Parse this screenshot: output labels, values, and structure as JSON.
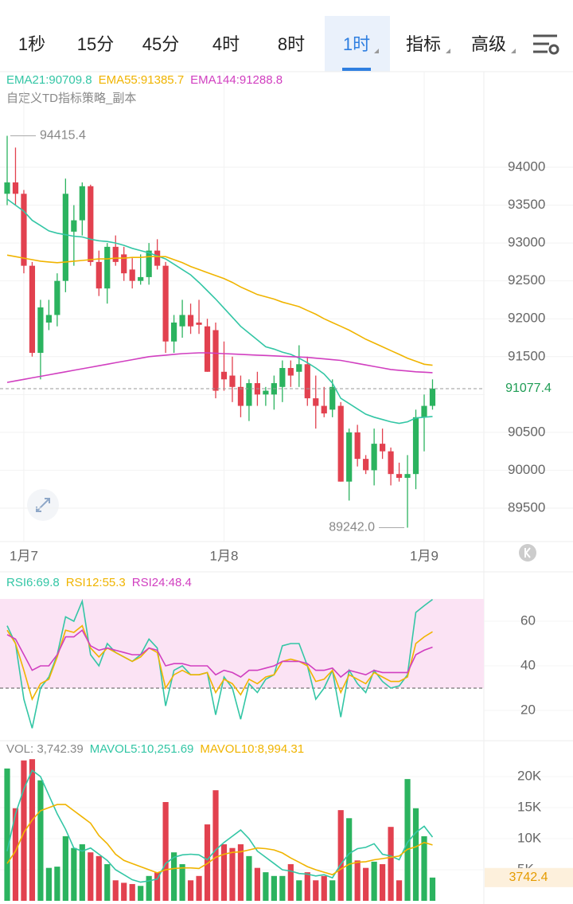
{
  "tabs": [
    {
      "label": "1秒",
      "active": false
    },
    {
      "label": "15分",
      "active": false
    },
    {
      "label": "45分",
      "active": false
    },
    {
      "label": "4时",
      "active": false
    },
    {
      "label": "8时",
      "active": false
    },
    {
      "label": "1时",
      "active": true
    },
    {
      "label": "指标",
      "active": false
    },
    {
      "label": "高级",
      "active": false
    }
  ],
  "subtitle": "自定义TD指标策略_副本",
  "chart_data": [
    {
      "type": "candlestick",
      "categories": [
        null,
        null,
        "1月7",
        null,
        null,
        null,
        null,
        null,
        null,
        null,
        null,
        null,
        null,
        null,
        null,
        null,
        null,
        null,
        null,
        null,
        null,
        null,
        null,
        null,
        null,
        null,
        "1月8",
        null,
        null,
        null,
        null,
        null,
        null,
        null,
        null,
        null,
        null,
        null,
        null,
        null,
        null,
        null,
        null,
        null,
        null,
        null,
        null,
        null,
        null,
        null,
        "1月9",
        null
      ],
      "open": [
        93650,
        93800,
        93650,
        92700,
        91550,
        91950,
        92050,
        92500,
        93150,
        93300,
        93750,
        92750,
        92400,
        92950,
        92850,
        92650,
        92500,
        92550,
        92900,
        92700,
        91700,
        91900,
        92050,
        91950,
        91900,
        91850,
        91300,
        91250,
        91100,
        90850,
        91150,
        91000,
        91000,
        91100,
        91350,
        91300,
        91400,
        90950,
        90850,
        90800,
        90850,
        89850,
        90500,
        90150,
        90000,
        90350,
        90250,
        89950,
        89900,
        89950,
        90700,
        90850
      ],
      "high": [
        94415.4,
        94260,
        93700,
        92750,
        92250,
        92250,
        92600,
        93850,
        93500,
        93800,
        93770,
        92900,
        93000,
        93100,
        92950,
        92800,
        92850,
        93000,
        93050,
        92750,
        92050,
        92250,
        92200,
        92250,
        92000,
        91950,
        91700,
        91500,
        91250,
        91200,
        91300,
        91100,
        91250,
        91450,
        91450,
        91650,
        91500,
        91250,
        91100,
        91200,
        90900,
        90550,
        90600,
        90200,
        90550,
        90550,
        90300,
        90100,
        90200,
        90800,
        91000,
        91200
      ],
      "low": [
        93500,
        93500,
        92600,
        91500,
        91200,
        91850,
        91900,
        92350,
        92700,
        93100,
        92700,
        92300,
        92200,
        92700,
        92500,
        92400,
        92450,
        92450,
        92650,
        91550,
        91550,
        91750,
        91800,
        91800,
        91300,
        90950,
        91050,
        90900,
        90700,
        90650,
        90850,
        90850,
        90800,
        90900,
        91100,
        91100,
        90850,
        90550,
        90700,
        90700,
        89850,
        89600,
        90050,
        89950,
        89800,
        90150,
        89800,
        89850,
        89242,
        89750,
        90250,
        90800
      ],
      "close": [
        93800,
        93650,
        92700,
        91550,
        92150,
        92050,
        92500,
        93650,
        93300,
        93750,
        92750,
        92400,
        92950,
        92750,
        92600,
        92500,
        92550,
        92900,
        92700,
        91700,
        91950,
        92050,
        91900,
        91920,
        91300,
        91050,
        91200,
        91100,
        90850,
        91150,
        91000,
        91050,
        91150,
        91350,
        91250,
        91400,
        90950,
        90850,
        90750,
        91100,
        89850,
        90500,
        90150,
        90000,
        90350,
        90250,
        89950,
        89900,
        89950,
        90700,
        90850,
        91077.4
      ],
      "up_color": "#2bb35f",
      "down_color": "#e2414f",
      "series": [
        {
          "name": "EMA21:90709.8",
          "color": "#33c6a5",
          "values": [
            93580,
            93500,
            93420,
            93300,
            93230,
            93160,
            93130,
            93110,
            93090,
            93080,
            93050,
            93030,
            93020,
            93000,
            92970,
            92930,
            92900,
            92870,
            92830,
            92790,
            92720,
            92650,
            92580,
            92480,
            92370,
            92260,
            92140,
            92020,
            91900,
            91810,
            91720,
            91630,
            91600,
            91560,
            91530,
            91480,
            91420,
            91350,
            91270,
            91150,
            90950,
            90880,
            90810,
            90740,
            90700,
            90670,
            90640,
            90620,
            90640,
            90690,
            90700,
            90709.8
          ]
        },
        {
          "name": "EMA55:91385.7",
          "color": "#f0b400",
          "values": [
            92840,
            92820,
            92800,
            92780,
            92760,
            92750,
            92740,
            92750,
            92760,
            92770,
            92780,
            92790,
            92790,
            92800,
            92800,
            92810,
            92810,
            92820,
            92820,
            92820,
            92780,
            92740,
            92690,
            92650,
            92610,
            92570,
            92530,
            92480,
            92420,
            92370,
            92320,
            92290,
            92260,
            92220,
            92190,
            92160,
            92110,
            92060,
            92000,
            91950,
            91900,
            91850,
            91790,
            91730,
            91680,
            91630,
            91580,
            91530,
            91480,
            91440,
            91400,
            91385.7
          ]
        },
        {
          "name": "EMA144:91288.8",
          "color": "#d13fc0",
          "values": [
            91160,
            91180,
            91200,
            91220,
            91240,
            91260,
            91280,
            91300,
            91320,
            91340,
            91360,
            91380,
            91400,
            91420,
            91440,
            91460,
            91480,
            91500,
            91510,
            91520,
            91530,
            91540,
            91545,
            91550,
            91550,
            91545,
            91540,
            91535,
            91530,
            91525,
            91520,
            91515,
            91510,
            91505,
            91500,
            91495,
            91490,
            91480,
            91470,
            91460,
            91450,
            91430,
            91410,
            91390,
            91370,
            91350,
            91330,
            91320,
            91310,
            91300,
            91295,
            91288.8
          ]
        }
      ],
      "ylim": [
        89058,
        95262
      ],
      "yticks": [
        89500,
        90000,
        90500,
        91000,
        91500,
        92000,
        92500,
        93000,
        93500,
        94000
      ],
      "annotations": [
        {
          "value": 94415.4,
          "label": "94415.4"
        },
        {
          "value": 89242,
          "label": "89242.0"
        }
      ],
      "last_price": {
        "value": 91077.4,
        "label": "91077.4"
      }
    },
    {
      "type": "line",
      "series": [
        {
          "name": "RSI6:69.8",
          "color": "#33c6a5",
          "values": [
            58,
            50,
            25,
            12,
            30,
            35,
            45,
            62,
            60,
            69,
            45,
            40,
            50,
            46,
            44,
            42,
            45,
            52,
            48,
            22,
            38,
            40,
            36,
            36,
            37,
            18,
            35,
            30,
            16,
            32,
            28,
            34,
            36,
            49,
            50,
            50,
            40,
            25,
            30,
            38,
            17,
            38,
            32,
            28,
            38,
            33,
            30,
            31,
            36,
            64,
            67,
            69.8
          ]
        },
        {
          "name": "RSI12:55.3",
          "color": "#f0b400",
          "values": [
            56,
            50,
            38,
            25,
            32,
            34,
            44,
            56,
            55,
            58,
            48,
            44,
            48,
            46,
            44,
            42,
            44,
            48,
            46,
            30,
            36,
            38,
            36,
            36,
            37,
            28,
            34,
            32,
            27,
            34,
            32,
            35,
            36,
            42,
            43,
            42,
            40,
            33,
            34,
            38,
            28,
            36,
            34,
            32,
            37,
            35,
            33,
            33,
            35,
            50,
            53,
            55.3
          ]
        },
        {
          "name": "RSI24:48.4",
          "color": "#d13fc0",
          "values": [
            54,
            52,
            45,
            38,
            40,
            40,
            45,
            53,
            53,
            56,
            49,
            47,
            48,
            47,
            46,
            45,
            45,
            48,
            47,
            40,
            41,
            41,
            40,
            40,
            40,
            36,
            38,
            37,
            35,
            38,
            38,
            39,
            40,
            42,
            42,
            42,
            41,
            38,
            38,
            39,
            35,
            38,
            37,
            36,
            38,
            37,
            37,
            37,
            37,
            45,
            47,
            48.4
          ]
        }
      ],
      "ylim": [
        7.1,
        73.6
      ],
      "yticks": [
        20,
        40,
        60
      ],
      "band": [
        30,
        70
      ],
      "band_color": "#fbe3f4"
    },
    {
      "type": "bar",
      "name": "VOL: 3,742.39",
      "values": [
        21300,
        14900,
        22600,
        22800,
        19400,
        5300,
        5500,
        10400,
        8500,
        9100,
        7800,
        7200,
        5900,
        3300,
        2900,
        2700,
        2400,
        4000,
        4600,
        15900,
        7800,
        5900,
        3300,
        4000,
        12300,
        17800,
        9100,
        8500,
        9100,
        7200,
        5300,
        4600,
        4000,
        4000,
        5900,
        3300,
        4600,
        3300,
        4000,
        3300,
        14600,
        13300,
        6500,
        5300,
        6300,
        5900,
        11900,
        3300,
        19600,
        14900,
        10400,
        3742.39
      ],
      "value_label": "3742.4",
      "series": [
        {
          "name": "MAVOL5:10,251.69",
          "color": "#33c6a5",
          "values": [
            8000,
            14000,
            18000,
            21000,
            20000,
            17000,
            14000,
            11500,
            8500,
            8000,
            8500,
            7500,
            6500,
            5000,
            4200,
            3400,
            3000,
            3200,
            3500,
            6000,
            7000,
            7400,
            7500,
            7400,
            6600,
            8200,
            9400,
            10400,
            11400,
            10000,
            8000,
            7000,
            6000,
            5000,
            4800,
            4400,
            4300,
            4000,
            4200,
            3700,
            5900,
            7600,
            8400,
            8600,
            9200,
            7500,
            7200,
            6600,
            9400,
            11000,
            12000,
            10251.69
          ]
        },
        {
          "name": "MAVOL10:8,994.31",
          "color": "#f0b400",
          "values": [
            6000,
            8000,
            11000,
            13000,
            14500,
            15000,
            15500,
            15500,
            14500,
            13500,
            12500,
            10500,
            9200,
            7500,
            6500,
            6000,
            5500,
            5000,
            4500,
            5000,
            5200,
            5300,
            5300,
            5200,
            6000,
            7000,
            7500,
            7800,
            7900,
            8200,
            8500,
            8400,
            8200,
            7700,
            6900,
            6200,
            5500,
            5000,
            4600,
            4200,
            5100,
            5900,
            6200,
            6300,
            6600,
            6800,
            7000,
            7200,
            8300,
            8700,
            9400,
            8994.31
          ]
        }
      ],
      "ylim": [
        0,
        23850
      ],
      "yticks": [
        {
          "value": 5000,
          "label": "5K"
        },
        {
          "value": 10000,
          "label": "10K"
        },
        {
          "value": 15000,
          "label": "15K"
        },
        {
          "value": 20000,
          "label": "20K"
        }
      ]
    }
  ]
}
